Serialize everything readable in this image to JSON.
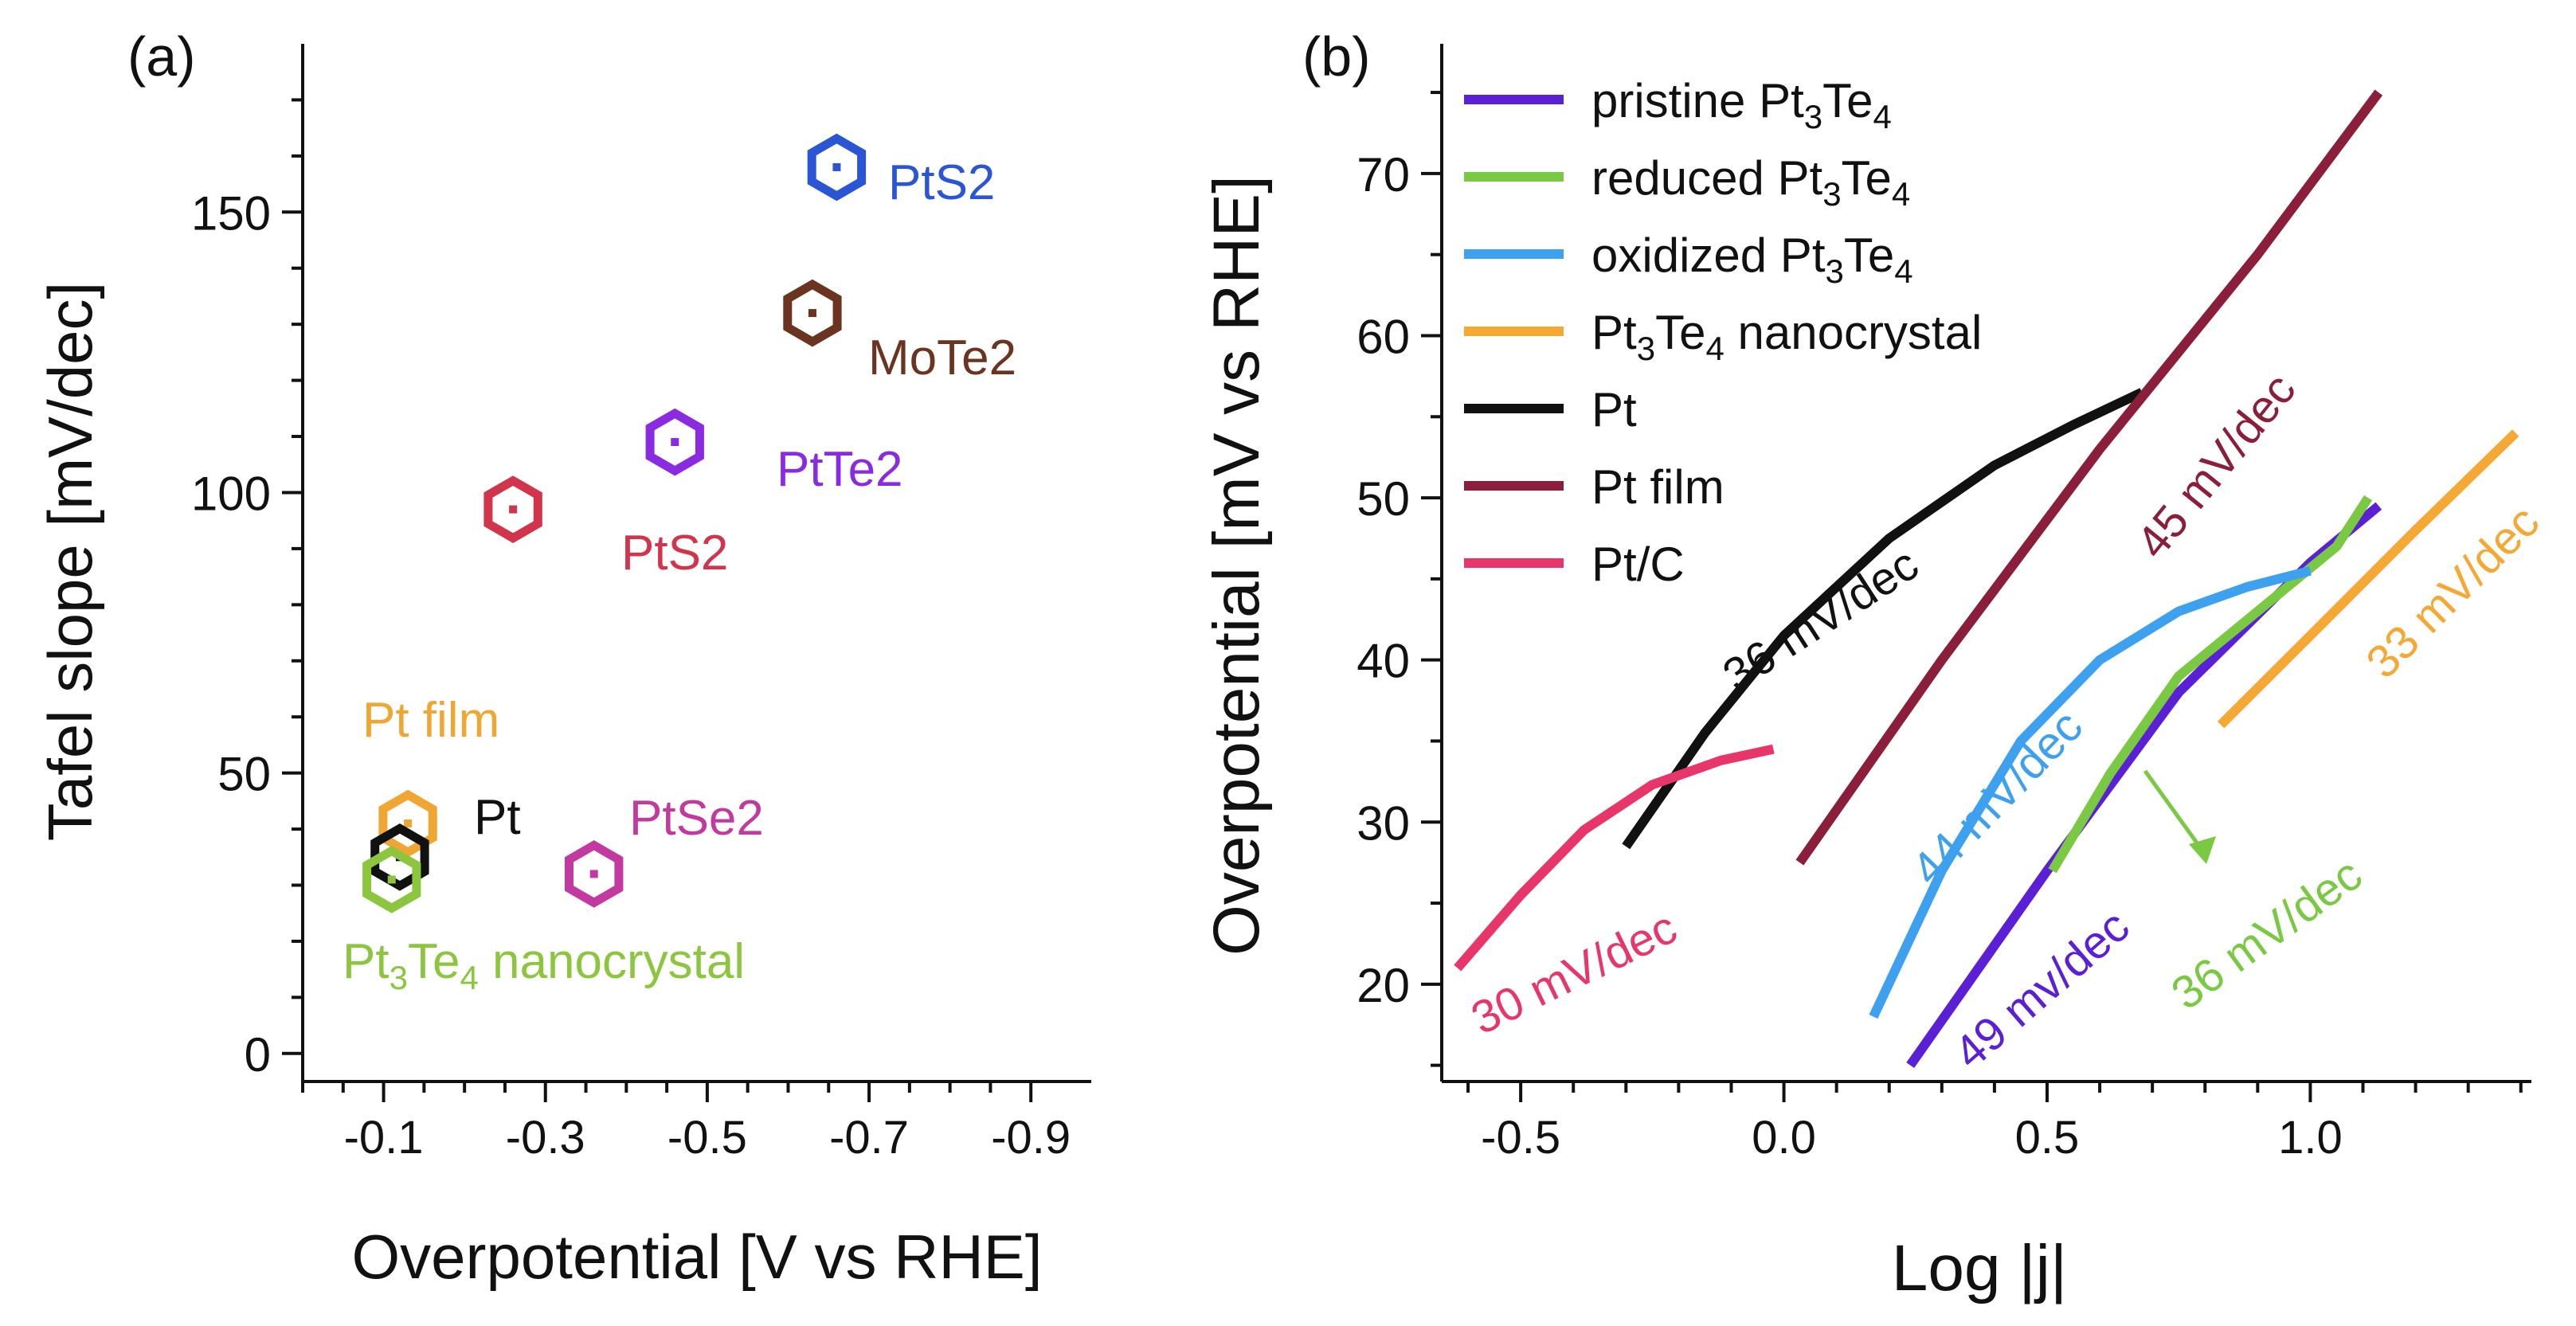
{
  "chart_data": [
    {
      "panel": "(a)",
      "type": "scatter",
      "xlabel": "Overpotential [V vs RHE]",
      "ylabel": "Tafel slope [mV/dec]",
      "xlim": [
        0.0,
        -0.95
      ],
      "ylim": [
        -5,
        180
      ],
      "xticks": [
        -0.1,
        -0.3,
        -0.5,
        -0.7,
        -0.9
      ],
      "xtick_labels": [
        "-0.1",
        "-0.3",
        "-0.5",
        "-0.7",
        "-0.9"
      ],
      "yticks": [
        0,
        50,
        100,
        150
      ],
      "ytick_labels": [
        "0",
        "50",
        "100",
        "150"
      ],
      "marker": "hexagon",
      "points": [
        {
          "name": "PtS2",
          "base": "PtS",
          "sub": "2",
          "x": -0.66,
          "y": 158,
          "color": "#2a56d6"
        },
        {
          "name": "MoTe2",
          "base": "MoTe",
          "sub": "2",
          "x": -0.63,
          "y": 132,
          "color": "#6b3420"
        },
        {
          "name": "PtTe2",
          "base": "PtTe",
          "sub": "2",
          "x": -0.46,
          "y": 109,
          "color": "#8a2be2"
        },
        {
          "name": "PtS2",
          "base": "PtS",
          "sub": "2",
          "x": -0.26,
          "y": 97,
          "color": "#d2344c"
        },
        {
          "name": "PtSe2",
          "base": "PtSe",
          "sub": "2",
          "x": -0.36,
          "y": 32,
          "color": "#c23aa0"
        },
        {
          "name": "Pt film",
          "base": "Pt film",
          "sub": "",
          "x": -0.13,
          "y": 41,
          "color": "#f0a633"
        },
        {
          "name": "Pt",
          "base": "Pt",
          "sub": "",
          "x": -0.12,
          "y": 35,
          "color": "#111111"
        },
        {
          "name": "Pt3Te4 nanocrystal",
          "base": "Pt3Te4 nanocrystal",
          "sub": "",
          "x": -0.11,
          "y": 31,
          "color": "#8cc63f"
        }
      ],
      "point_labels": {
        "pts2_blue": "PtS2",
        "mote2": "MoTe2",
        "ptte2": "PtTe2",
        "pts2_red": "PtS2",
        "ptse2": "PtSe2",
        "pt_film": "Pt film",
        "pt": "Pt",
        "pt3te4": {
          "p1": "Pt",
          "s1": "3",
          "p2": "Te",
          "s2": "4",
          "p3": " nanocrystal"
        }
      }
    },
    {
      "panel": "(b)",
      "type": "line",
      "xlabel": "Log |j|",
      "ylabel": "Overpotential [mV vs RHE]",
      "xlim": [
        -0.65,
        1.42
      ],
      "ylim": [
        14,
        78
      ],
      "xticks": [
        -0.5,
        0.0,
        0.5,
        1.0
      ],
      "xtick_labels": [
        "-0.5",
        "0.0",
        "0.5",
        "1.0"
      ],
      "yticks": [
        20,
        30,
        40,
        50,
        60,
        70
      ],
      "ytick_labels": [
        "20",
        "30",
        "40",
        "50",
        "60",
        "70"
      ],
      "series": [
        {
          "name": "pristine Pt3Te4",
          "color": "#5b1fd6",
          "x": [
            0.24,
            0.5,
            0.75,
            1.0,
            1.13
          ],
          "y": [
            15,
            27,
            38,
            46,
            49.5
          ]
        },
        {
          "name": "reduced Pt3Te4",
          "color": "#7ac943",
          "x": [
            0.51,
            0.62,
            0.75,
            0.9,
            1.05,
            1.11
          ],
          "y": [
            27,
            33,
            39,
            43,
            47,
            50
          ]
        },
        {
          "name": "oxidized Pt3Te4",
          "color": "#3ea1f0",
          "x": [
            0.17,
            0.3,
            0.45,
            0.6,
            0.75,
            0.88,
            1.0
          ],
          "y": [
            18,
            27,
            35,
            40,
            43,
            44.5,
            45.5
          ]
        },
        {
          "name": "Pt3Te4 nanocrystal",
          "color": "#f5a833",
          "x": [
            0.83,
            1.0,
            1.2,
            1.39
          ],
          "y": [
            36,
            41.5,
            48,
            54
          ]
        },
        {
          "name": "Pt",
          "color": "#111111",
          "x": [
            -0.3,
            -0.15,
            0.0,
            0.2,
            0.4,
            0.55,
            0.68
          ],
          "y": [
            28.5,
            35.5,
            41.5,
            47.5,
            52,
            54.5,
            56.5
          ]
        },
        {
          "name": "Pt film",
          "color": "#8b1e3a",
          "x": [
            0.03,
            0.3,
            0.6,
            0.9,
            1.13
          ],
          "y": [
            27.5,
            40,
            53,
            65,
            75
          ]
        },
        {
          "name": "Pt/C",
          "color": "#e8356a",
          "x": [
            -0.62,
            -0.5,
            -0.38,
            -0.25,
            -0.12,
            -0.02
          ],
          "y": [
            21,
            25.5,
            29.5,
            32.3,
            33.8,
            34.5
          ]
        }
      ],
      "legend_labels": [
        {
          "p1": "pristine Pt",
          "s1": "3",
          "p2": "Te",
          "s2": "4",
          "p3": ""
        },
        {
          "p1": "reduced Pt",
          "s1": "3",
          "p2": "Te",
          "s2": "4",
          "p3": ""
        },
        {
          "p1": "oxidized Pt",
          "s1": "3",
          "p2": "Te",
          "s2": "4",
          "p3": ""
        },
        {
          "p1": "Pt",
          "s1": "3",
          "p2": "Te",
          "s2": "4",
          "p3": " nanocrystal"
        },
        {
          "p1": "Pt",
          "s1": "",
          "p2": "",
          "s2": "",
          "p3": ""
        },
        {
          "p1": "Pt film",
          "s1": "",
          "p2": "",
          "s2": "",
          "p3": ""
        },
        {
          "p1": "Pt/C",
          "s1": "",
          "p2": "",
          "s2": "",
          "p3": ""
        }
      ],
      "legend_position": "top-left",
      "annotations": [
        {
          "text": "36 mV/dec",
          "series": "Pt",
          "color": "#111111"
        },
        {
          "text": "45 mV/dec",
          "series": "Pt film",
          "color": "#8b1e3a"
        },
        {
          "text": "33 mV/dec",
          "series": "Pt3Te4 nanocrystal",
          "color": "#f5a833"
        },
        {
          "text": "44 mV/dec",
          "series": "oxidized Pt3Te4",
          "color": "#3ea1f0"
        },
        {
          "text": "36 mV/dec",
          "series": "reduced Pt3Te4",
          "color": "#7ac943"
        },
        {
          "text": "49 mv/dec",
          "series": "pristine Pt3Te4",
          "color": "#5b1fd6"
        },
        {
          "text": "30 mV/dec",
          "series": "Pt/C",
          "color": "#e8356a"
        }
      ]
    }
  ]
}
